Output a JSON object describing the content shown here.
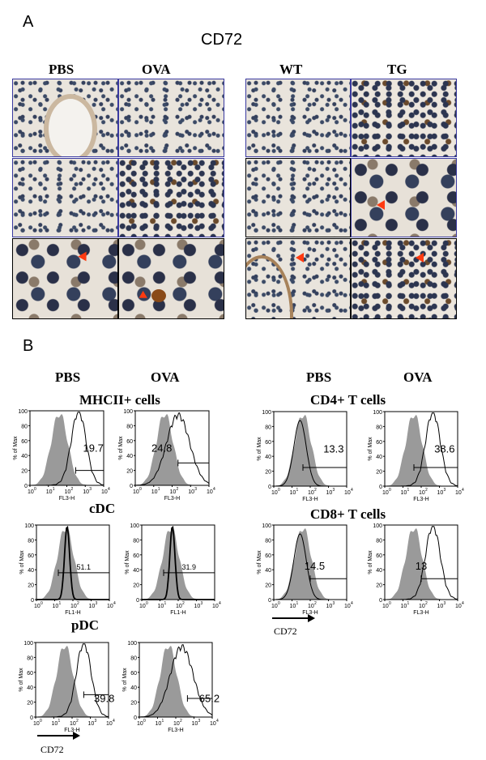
{
  "panel_a": {
    "letter": "A",
    "title": "CD72",
    "left_cols": [
      "PBS",
      "OVA"
    ],
    "right_cols": [
      "WT",
      "TG"
    ]
  },
  "panel_b": {
    "letter": "B",
    "left_cols": [
      "PBS",
      "OVA"
    ],
    "right_cols": [
      "PBS",
      "OVA"
    ],
    "row_titles": {
      "mhcii": "MHCII+ cells",
      "cdc": "cDC",
      "pdc": "pDC",
      "cd4": "CD4+ T cells",
      "cd8": "CD8+ T cells"
    },
    "y_axis_label": "% of Max",
    "arrow_label": "CD72",
    "arrow_label_right": "CD72"
  },
  "chart_data": [
    {
      "type": "area",
      "id": "mhcii-pbs",
      "xlabel": "FL3-H",
      "ylabel": "% of Max",
      "xscale": "log",
      "xlim": [
        1,
        10000
      ],
      "ylim": [
        0,
        100
      ],
      "yticks": [
        0,
        20,
        40,
        60,
        80,
        100
      ],
      "xtick_exponents": [
        0,
        1,
        2,
        3,
        4
      ],
      "gate_value": "19.7"
    },
    {
      "type": "area",
      "id": "mhcii-ova",
      "xlabel": "FL3-H",
      "ylabel": "% of Max",
      "xscale": "log",
      "xlim": [
        1,
        10000
      ],
      "ylim": [
        0,
        100
      ],
      "yticks": [
        0,
        20,
        40,
        60,
        80,
        100
      ],
      "xtick_exponents": [
        0,
        1,
        2,
        3,
        4
      ],
      "gate_value": "24.8"
    },
    {
      "type": "area",
      "id": "cdc-pbs",
      "xlabel": "FL1-H",
      "ylabel": "% of Max",
      "xscale": "log",
      "xlim": [
        1,
        10000
      ],
      "ylim": [
        0,
        100
      ],
      "yticks": [
        0,
        20,
        40,
        60,
        80,
        100
      ],
      "xtick_exponents": [
        0,
        1,
        2,
        3,
        4
      ],
      "gate_value": "51.1"
    },
    {
      "type": "area",
      "id": "cdc-ova",
      "xlabel": "FL1-H",
      "ylabel": "% of Max",
      "xscale": "log",
      "xlim": [
        1,
        10000
      ],
      "ylim": [
        0,
        100
      ],
      "yticks": [
        0,
        20,
        40,
        60,
        80,
        100
      ],
      "xtick_exponents": [
        0,
        1,
        2,
        3,
        4
      ],
      "gate_value": "31.9"
    },
    {
      "type": "area",
      "id": "pdc-pbs",
      "xlabel": "FL3-H",
      "ylabel": "% of Max",
      "xscale": "log",
      "xlim": [
        1,
        10000
      ],
      "ylim": [
        0,
        100
      ],
      "yticks": [
        0,
        20,
        40,
        60,
        80,
        100
      ],
      "xtick_exponents": [
        0,
        1,
        2,
        3,
        4
      ],
      "gate_value": "39.8"
    },
    {
      "type": "area",
      "id": "pdc-ova",
      "xlabel": "FL3-H",
      "ylabel": "% of Max",
      "xscale": "log",
      "xlim": [
        1,
        10000
      ],
      "ylim": [
        0,
        100
      ],
      "yticks": [
        0,
        20,
        40,
        60,
        80,
        100
      ],
      "xtick_exponents": [
        0,
        1,
        2,
        3,
        4
      ],
      "gate_value": "65.2"
    },
    {
      "type": "area",
      "id": "cd4-pbs",
      "xlabel": "FL3-H",
      "ylabel": "% of Max",
      "xscale": "log",
      "xlim": [
        1,
        10000
      ],
      "ylim": [
        0,
        100
      ],
      "yticks": [
        0,
        20,
        40,
        60,
        80,
        100
      ],
      "xtick_exponents": [
        0,
        1,
        2,
        3,
        4
      ],
      "gate_value": "13.3"
    },
    {
      "type": "area",
      "id": "cd4-ova",
      "xlabel": "FL3-H",
      "ylabel": "% of Max",
      "xscale": "log",
      "xlim": [
        1,
        10000
      ],
      "ylim": [
        0,
        100
      ],
      "yticks": [
        0,
        20,
        40,
        60,
        80,
        100
      ],
      "xtick_exponents": [
        0,
        1,
        2,
        3,
        4
      ],
      "gate_value": "38.6"
    },
    {
      "type": "area",
      "id": "cd8-pbs",
      "xlabel": "FL3-H",
      "ylabel": "% of Max",
      "xscale": "log",
      "xlim": [
        1,
        10000
      ],
      "ylim": [
        0,
        100
      ],
      "yticks": [
        0,
        20,
        40,
        60,
        80,
        100
      ],
      "xtick_exponents": [
        0,
        1,
        2,
        3,
        4
      ],
      "gate_value": "14.5"
    },
    {
      "type": "area",
      "id": "cd8-ova",
      "xlabel": "FL3-H",
      "ylabel": "% of Max",
      "xscale": "log",
      "xlim": [
        1,
        10000
      ],
      "ylim": [
        0,
        100
      ],
      "yticks": [
        0,
        20,
        40,
        60,
        80,
        100
      ],
      "xtick_exponents": [
        0,
        1,
        2,
        3,
        4
      ],
      "gate_value": "13"
    }
  ]
}
